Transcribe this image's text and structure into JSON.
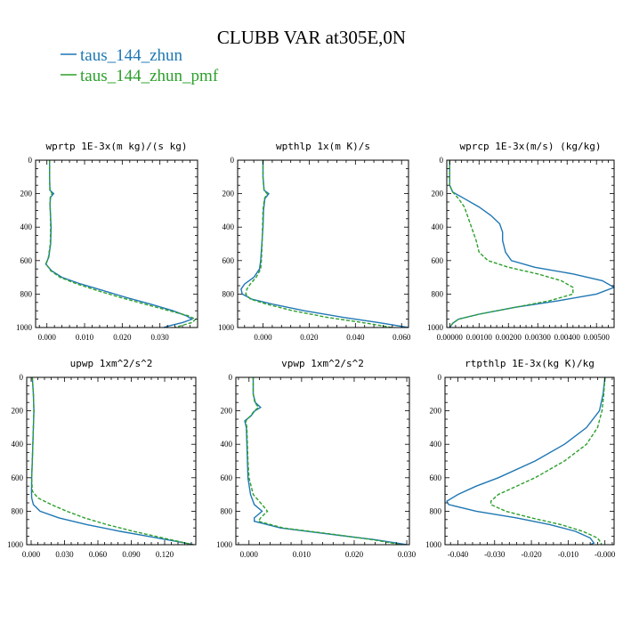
{
  "figure": {
    "title": "CLUBB VAR at305E,0N",
    "legend": [
      {
        "label": "taus_144_zhun",
        "color": "#1f77b4",
        "style": "solid"
      },
      {
        "label": "taus_144_zhun_pmf",
        "color": "#2ca02c",
        "style": "dashed"
      }
    ]
  },
  "chart_data": [
    {
      "type": "line",
      "title": "wprtp  1E-3x(m kg)/(s kg)",
      "xlim": [
        -0.003,
        0.04
      ],
      "ylim": [
        1000,
        0
      ],
      "xticks": [
        0.0,
        0.01,
        0.02,
        0.03
      ],
      "xtick_labels": [
        "0.000",
        "0.010",
        "0.020",
        "0.030"
      ],
      "yticks": [
        0,
        200,
        400,
        600,
        800,
        1000
      ],
      "ytick_labels": [
        "0",
        "200",
        "400",
        "600",
        "800",
        "1000"
      ],
      "y": [
        0,
        100,
        180,
        200,
        220,
        260,
        300,
        400,
        500,
        580,
        620,
        660,
        700,
        740,
        780,
        820,
        860,
        900,
        930,
        950,
        970,
        990,
        1000
      ],
      "series": [
        {
          "name": "taus_144_zhun",
          "x": [
            0.0007,
            0.0007,
            0.0008,
            0.0018,
            0.001,
            0.0008,
            0.0009,
            0.0011,
            0.001,
            0.0005,
            -0.0003,
            0.0012,
            0.004,
            0.009,
            0.015,
            0.021,
            0.0275,
            0.0335,
            0.037,
            0.0385,
            0.036,
            0.0325,
            0.031
          ]
        },
        {
          "name": "taus_144_zhun_pmf",
          "x": [
            0.0007,
            0.0007,
            0.0008,
            0.0014,
            0.0009,
            0.0008,
            0.0009,
            0.001,
            0.0009,
            0.0004,
            -0.0002,
            0.001,
            0.0035,
            0.008,
            0.0135,
            0.0195,
            0.026,
            0.0325,
            0.0375,
            0.0395,
            0.0385,
            0.0355,
            0.034
          ]
        }
      ]
    },
    {
      "type": "line",
      "title": "wpthlp  1x(m K)/s",
      "xlim": [
        -0.011,
        0.063
      ],
      "ylim": [
        1000,
        0
      ],
      "xticks": [
        0.0,
        0.02,
        0.04,
        0.06
      ],
      "xtick_labels": [
        "0.000",
        "0.020",
        "0.040",
        "0.060"
      ],
      "yticks": [
        0,
        200,
        400,
        600,
        800,
        1000
      ],
      "ytick_labels": [
        "0",
        "200",
        "400",
        "600",
        "800",
        "1000"
      ],
      "y": [
        0,
        100,
        180,
        200,
        230,
        300,
        400,
        500,
        600,
        650,
        700,
        740,
        770,
        800,
        830,
        860,
        900,
        940,
        970,
        1000
      ],
      "series": [
        {
          "name": "taus_144_zhun",
          "x": [
            0.0,
            0.0,
            0.0005,
            0.0025,
            0.0008,
            0.0002,
            0.0,
            -0.0005,
            -0.001,
            -0.0015,
            -0.004,
            -0.008,
            -0.0095,
            -0.009,
            -0.005,
            0.004,
            0.018,
            0.035,
            0.05,
            0.063
          ]
        },
        {
          "name": "taus_144_zhun_pmf",
          "x": [
            0.0,
            0.0,
            0.0004,
            0.0018,
            0.0006,
            0.0,
            -0.0002,
            -0.0004,
            -0.0007,
            -0.001,
            -0.003,
            -0.0055,
            -0.007,
            -0.0075,
            -0.0055,
            0.0015,
            0.013,
            0.028,
            0.043,
            0.056
          ]
        }
      ]
    },
    {
      "type": "line",
      "title": "wprcp  1E-3x(m/s) (kg/kg)",
      "xlim": [
        -0.0001,
        0.0056
      ],
      "ylim": [
        1000,
        0
      ],
      "xticks": [
        0.0,
        0.001,
        0.002,
        0.003,
        0.004,
        0.005
      ],
      "xtick_labels": [
        "0.00000",
        "0.00100",
        "0.00200",
        "0.00300",
        "0.00400",
        "0.00500"
      ],
      "yticks": [
        0,
        200,
        400,
        600,
        800,
        1000
      ],
      "ytick_labels": [
        "0",
        "200",
        "400",
        "600",
        "800",
        "1000"
      ],
      "y": [
        0,
        150,
        190,
        230,
        280,
        330,
        380,
        430,
        480,
        550,
        600,
        640,
        680,
        720,
        760,
        800,
        840,
        880,
        920,
        950,
        975,
        1000
      ],
      "series": [
        {
          "name": "taus_144_zhun",
          "x": [
            0.0,
            0.0,
            0.0001,
            0.0005,
            0.001,
            0.0014,
            0.0017,
            0.0018,
            0.0018,
            0.0019,
            0.0021,
            0.0029,
            0.0042,
            0.0052,
            0.0056,
            0.005,
            0.0037,
            0.0022,
            0.001,
            0.0003,
            0.0001,
            0.0
          ]
        },
        {
          "name": "taus_144_zhun_pmf",
          "x": [
            0.0,
            0.0,
            0.0001,
            0.0003,
            0.0005,
            0.0006,
            0.0007,
            0.0008,
            0.0009,
            0.001,
            0.0013,
            0.002,
            0.003,
            0.0038,
            0.0042,
            0.0042,
            0.0034,
            0.0022,
            0.001,
            0.0003,
            0.0001,
            0.0
          ]
        }
      ]
    },
    {
      "type": "line",
      "title": "upwp  1xm^2/s^2",
      "xlim": [
        -0.004,
        0.148
      ],
      "ylim": [
        1000,
        0
      ],
      "xticks": [
        0.0,
        0.03,
        0.06,
        0.09,
        0.12
      ],
      "xtick_labels": [
        "0.000",
        "0.030",
        "0.060",
        "0.090",
        "0.120"
      ],
      "yticks": [
        0,
        200,
        400,
        600,
        800,
        1000
      ],
      "ytick_labels": [
        "0",
        "200",
        "400",
        "600",
        "800",
        "1000"
      ],
      "y": [
        0,
        100,
        200,
        300,
        400,
        500,
        600,
        680,
        720,
        760,
        800,
        840,
        880,
        920,
        950,
        980,
        1000
      ],
      "series": [
        {
          "name": "taus_144_zhun",
          "x": [
            0.001,
            0.002,
            0.0025,
            0.002,
            0.0015,
            0.001,
            0.0005,
            0.0003,
            0.0005,
            0.002,
            0.008,
            0.025,
            0.05,
            0.08,
            0.105,
            0.13,
            0.146
          ]
        },
        {
          "name": "taus_144_zhun_pmf",
          "x": [
            0.001,
            0.002,
            0.0025,
            0.002,
            0.0015,
            0.001,
            0.0005,
            0.001,
            0.006,
            0.018,
            0.032,
            0.048,
            0.068,
            0.092,
            0.112,
            0.132,
            0.145
          ]
        }
      ]
    },
    {
      "type": "line",
      "title": "vpwp  1xm^2/s^2",
      "xlim": [
        -0.0025,
        0.0305
      ],
      "ylim": [
        1000,
        0
      ],
      "xticks": [
        0.0,
        0.01,
        0.02,
        0.03
      ],
      "xtick_labels": [
        "0.000",
        "0.010",
        "0.020",
        "0.030"
      ],
      "yticks": [
        0,
        200,
        400,
        600,
        800,
        1000
      ],
      "ytick_labels": [
        "0",
        "200",
        "400",
        "600",
        "800",
        "1000"
      ],
      "y": [
        0,
        100,
        150,
        180,
        200,
        230,
        260,
        300,
        400,
        500,
        600,
        700,
        760,
        800,
        840,
        860,
        900,
        940,
        970,
        1000
      ],
      "series": [
        {
          "name": "taus_144_zhun",
          "x": [
            0.0008,
            0.0008,
            0.0012,
            0.0022,
            0.0011,
            0.0004,
            -0.0008,
            -0.0005,
            -0.0004,
            -0.0003,
            -0.0002,
            0.0003,
            0.001,
            0.0025,
            0.001,
            0.001,
            0.006,
            0.016,
            0.024,
            0.03
          ]
        },
        {
          "name": "taus_144_zhun_pmf",
          "x": [
            0.0008,
            0.0008,
            0.0011,
            0.0018,
            0.001,
            0.0003,
            -0.0006,
            -0.0004,
            -0.0003,
            -0.0002,
            0.0,
            0.0008,
            0.0025,
            0.0035,
            0.0022,
            0.0018,
            0.0065,
            0.0165,
            0.0235,
            0.029
          ]
        }
      ]
    },
    {
      "type": "line",
      "title": "rtpthlp  1E-3x(kg K)/kg",
      "xlim": [
        -0.0435,
        0.0025
      ],
      "ylim": [
        1000,
        0
      ],
      "xticks": [
        -0.04,
        -0.03,
        -0.02,
        -0.01,
        0.0
      ],
      "xtick_labels": [
        "-0.040",
        "-0.030",
        "-0.020",
        "-0.010",
        "-0.000"
      ],
      "yticks": [
        0,
        200,
        400,
        600,
        800,
        1000
      ],
      "ytick_labels": [
        "0",
        "200",
        "400",
        "600",
        "800",
        "1000"
      ],
      "y": [
        0,
        100,
        200,
        300,
        400,
        500,
        600,
        650,
        700,
        740,
        760,
        800,
        840,
        880,
        920,
        960,
        990,
        1000
      ],
      "series": [
        {
          "name": "taus_144_zhun",
          "x": [
            0.0,
            -0.0005,
            -0.0015,
            -0.005,
            -0.011,
            -0.019,
            -0.029,
            -0.035,
            -0.04,
            -0.043,
            -0.0425,
            -0.035,
            -0.024,
            -0.015,
            -0.008,
            -0.004,
            -0.003,
            -0.004
          ]
        },
        {
          "name": "taus_144_zhun_pmf",
          "x": [
            0.0,
            -0.0003,
            -0.0008,
            -0.002,
            -0.005,
            -0.011,
            -0.019,
            -0.024,
            -0.029,
            -0.031,
            -0.031,
            -0.027,
            -0.02,
            -0.012,
            -0.006,
            -0.002,
            -0.001,
            -0.001
          ]
        }
      ]
    }
  ]
}
